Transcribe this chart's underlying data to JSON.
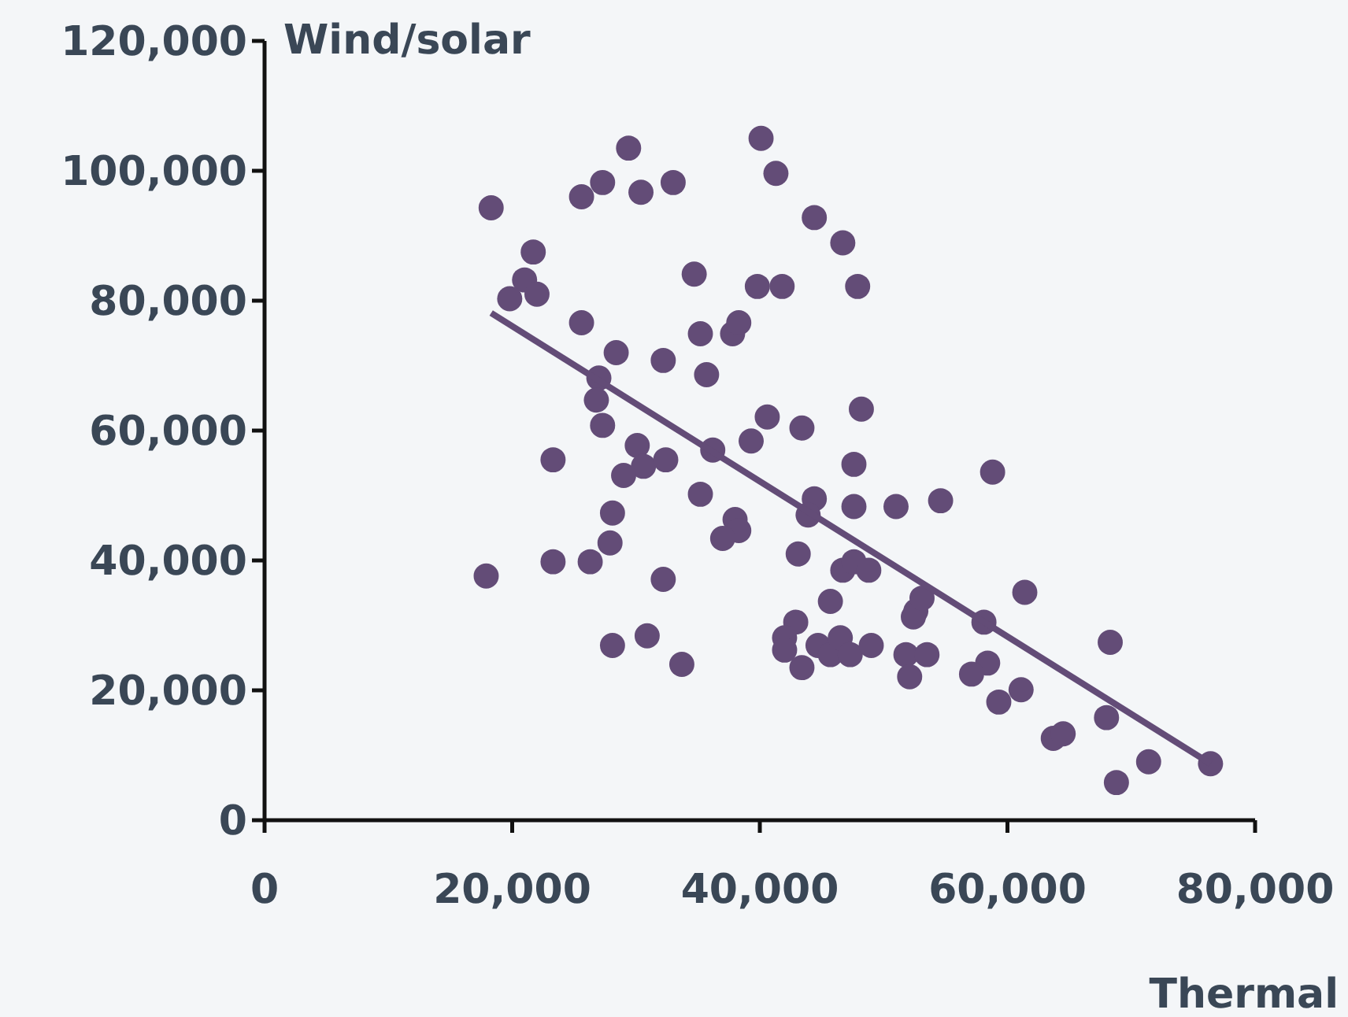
{
  "chart_data": {
    "type": "scatter",
    "xlabel": "Thermal",
    "ylabel": "Wind/solar",
    "xlim": [
      0,
      80000
    ],
    "xticks": [
      {
        "value": 0,
        "label": "0"
      },
      {
        "value": 20000,
        "label": "20,000"
      },
      {
        "value": 40000,
        "label": "40,000"
      },
      {
        "value": 60000,
        "label": "60,000"
      },
      {
        "value": 80000,
        "label": "80,000"
      }
    ],
    "ylim": [
      0,
      120000
    ],
    "yticks": [
      {
        "value": 0,
        "label": "0"
      },
      {
        "value": 20000,
        "label": "20,000"
      },
      {
        "value": 40000,
        "label": "40,000"
      },
      {
        "value": 60000,
        "label": "60,000"
      },
      {
        "value": 80000,
        "label": "80,000"
      },
      {
        "value": 100000,
        "label": "100,000"
      },
      {
        "value": 120000,
        "label": "120,000"
      }
    ],
    "grid": false,
    "marker": "circle",
    "series": [
      {
        "color": "#634c77",
        "x": [
          18300,
          21700,
          21000,
          19800,
          22000,
          25600,
          25600,
          27300,
          29400,
          30400,
          33000,
          34700,
          35200,
          35700,
          37800,
          38300,
          32200,
          28400,
          27000,
          26800,
          27300,
          30100,
          30600,
          29000,
          32400,
          23300,
          36200,
          35200,
          28100,
          27900,
          38000,
          38300,
          37000,
          23300,
          26300,
          17900,
          32200,
          28100,
          30900,
          33700,
          40100,
          41300,
          44400,
          46700,
          47900,
          39800,
          41800,
          40600,
          43400,
          48200,
          39300,
          44400,
          43900,
          47600,
          47600,
          51000,
          54600,
          58800,
          43100,
          46700,
          47600,
          48800,
          45700,
          42900,
          42000,
          42000,
          43400,
          44700,
          45700,
          46500,
          47300,
          49000,
          52600,
          52400,
          53100,
          51800,
          52100,
          53500,
          58100,
          58400,
          57100,
          61400,
          61100,
          59300,
          63700,
          64500,
          68300,
          68000,
          68800,
          71400,
          76400
        ],
        "values": [
          94300,
          87500,
          83200,
          80300,
          81000,
          76600,
          96000,
          98200,
          103500,
          96700,
          98200,
          84100,
          74900,
          68600,
          74900,
          76600,
          70800,
          72000,
          68100,
          64700,
          60800,
          57700,
          54500,
          53100,
          55500,
          55500,
          57000,
          50200,
          47300,
          42700,
          46300,
          44600,
          43400,
          39800,
          39800,
          37600,
          37100,
          26900,
          28400,
          24000,
          105000,
          99600,
          92800,
          88900,
          82200,
          82200,
          82200,
          62100,
          60400,
          63300,
          58400,
          49500,
          47000,
          54800,
          48300,
          48300,
          49200,
          53600,
          41000,
          38500,
          39800,
          38500,
          33700,
          30500,
          28100,
          26200,
          23500,
          26900,
          25500,
          28100,
          25500,
          26900,
          32200,
          31300,
          34200,
          25500,
          22100,
          25500,
          30500,
          24200,
          22500,
          35100,
          20100,
          18200,
          12600,
          13300,
          27400,
          15800,
          5800,
          9000,
          8700
        ]
      },
      {
        "type": "line",
        "color": "#634c77",
        "marker": "none",
        "line_style": "solid",
        "x": [
          18300,
          76400
        ],
        "values": [
          78100,
          8700
        ]
      }
    ]
  }
}
